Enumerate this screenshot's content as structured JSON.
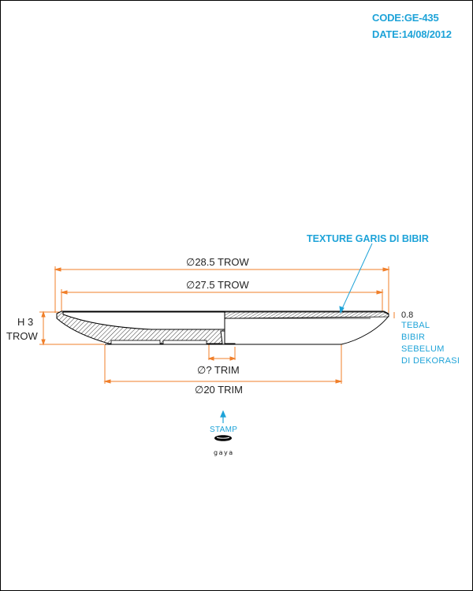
{
  "header": {
    "code": "CODE:GE-435",
    "date": "DATE:14/08/2012"
  },
  "dimensions": {
    "outer_diameter": "∅28.5 TROW",
    "inner_diameter": "∅27.5 TROW",
    "foot_trim": "∅? TRIM",
    "base_trim": "∅20 TRIM",
    "height_line1": "H 3",
    "height_line2": "TROW",
    "rim_thickness": "0.8"
  },
  "annotations": {
    "texture_label": "TEXTURE GARIS DI BIBIR",
    "rim_note": [
      "TEBAL",
      "BIBIR",
      "SEBELUM",
      "DI DEKORASI"
    ],
    "stamp_label": "STAMP",
    "stamp_logo_text": "gaya"
  },
  "colors": {
    "dimension_line": "#f07f2a",
    "accent": "#1ea3d8",
    "outline": "#000000"
  }
}
